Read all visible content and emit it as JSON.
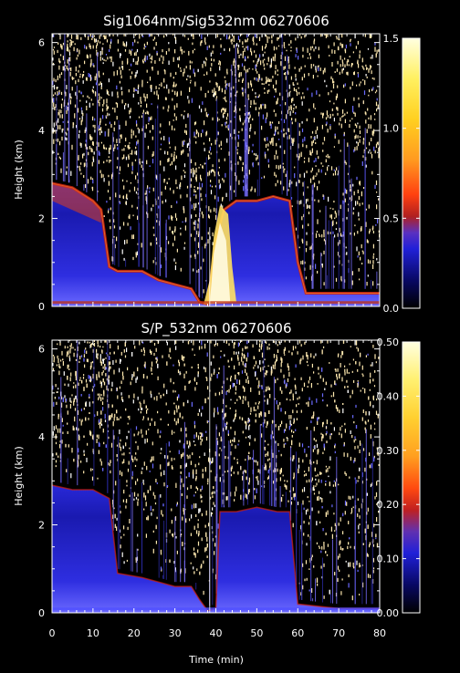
{
  "chart_data": [
    {
      "type": "heatmap",
      "title": "Sig1064nm/Sig532nm 06270606",
      "ylabel": "Height (km)",
      "xlim": [
        0,
        80
      ],
      "ylim": [
        0,
        6.2
      ],
      "y_ticks": [
        0,
        2,
        4,
        6
      ],
      "colorbar_ticks": [
        "0.0",
        "0.5",
        "1.0",
        "1.5"
      ],
      "colorbar_range": [
        0,
        1.5
      ],
      "layer_top_km": [
        [
          0,
          2.8
        ],
        [
          5,
          2.7
        ],
        [
          10,
          2.4
        ],
        [
          12,
          2.2
        ],
        [
          14,
          0.9
        ],
        [
          16,
          0.8
        ],
        [
          22,
          0.8
        ],
        [
          26,
          0.6
        ],
        [
          30,
          0.5
        ],
        [
          34,
          0.4
        ],
        [
          36,
          0.1
        ],
        [
          38,
          0.05
        ],
        [
          40,
          1.5
        ],
        [
          42,
          2.2
        ],
        [
          45,
          2.4
        ],
        [
          50,
          2.4
        ],
        [
          54,
          2.5
        ],
        [
          58,
          2.4
        ],
        [
          60,
          1.0
        ],
        [
          62,
          0.3
        ],
        [
          70,
          0.3
        ],
        [
          80,
          0.3
        ]
      ]
    },
    {
      "type": "heatmap",
      "title": "S/P_532nm 06270606",
      "xlabel": "Time (min)",
      "ylabel": "Height (km)",
      "xlim": [
        0,
        80
      ],
      "ylim": [
        0,
        6.2
      ],
      "x_ticks": [
        0,
        10,
        20,
        30,
        40,
        50,
        60,
        70,
        80
      ],
      "y_ticks": [
        0,
        2,
        4,
        6
      ],
      "colorbar_ticks": [
        "0.00",
        "0.10",
        "0.20",
        "0.30",
        "0.40",
        "0.50"
      ],
      "colorbar_range": [
        0,
        0.5
      ],
      "layer_top_km": [
        [
          0,
          2.9
        ],
        [
          5,
          2.8
        ],
        [
          10,
          2.8
        ],
        [
          14,
          2.6
        ],
        [
          16,
          0.9
        ],
        [
          22,
          0.8
        ],
        [
          26,
          0.7
        ],
        [
          30,
          0.6
        ],
        [
          34,
          0.6
        ],
        [
          36,
          0.3
        ],
        [
          38,
          0.05
        ],
        [
          40,
          0.1
        ],
        [
          41,
          2.3
        ],
        [
          45,
          2.3
        ],
        [
          50,
          2.4
        ],
        [
          55,
          2.3
        ],
        [
          58,
          2.3
        ],
        [
          60,
          0.2
        ],
        [
          70,
          0.1
        ],
        [
          80,
          0.1
        ]
      ]
    }
  ],
  "colors": {
    "layer_low": "#0a0a5a",
    "layer_mid": "#2828d0",
    "layer_high": "#5050ff",
    "noise": "#ffe9b0",
    "edge": "#d02010"
  }
}
